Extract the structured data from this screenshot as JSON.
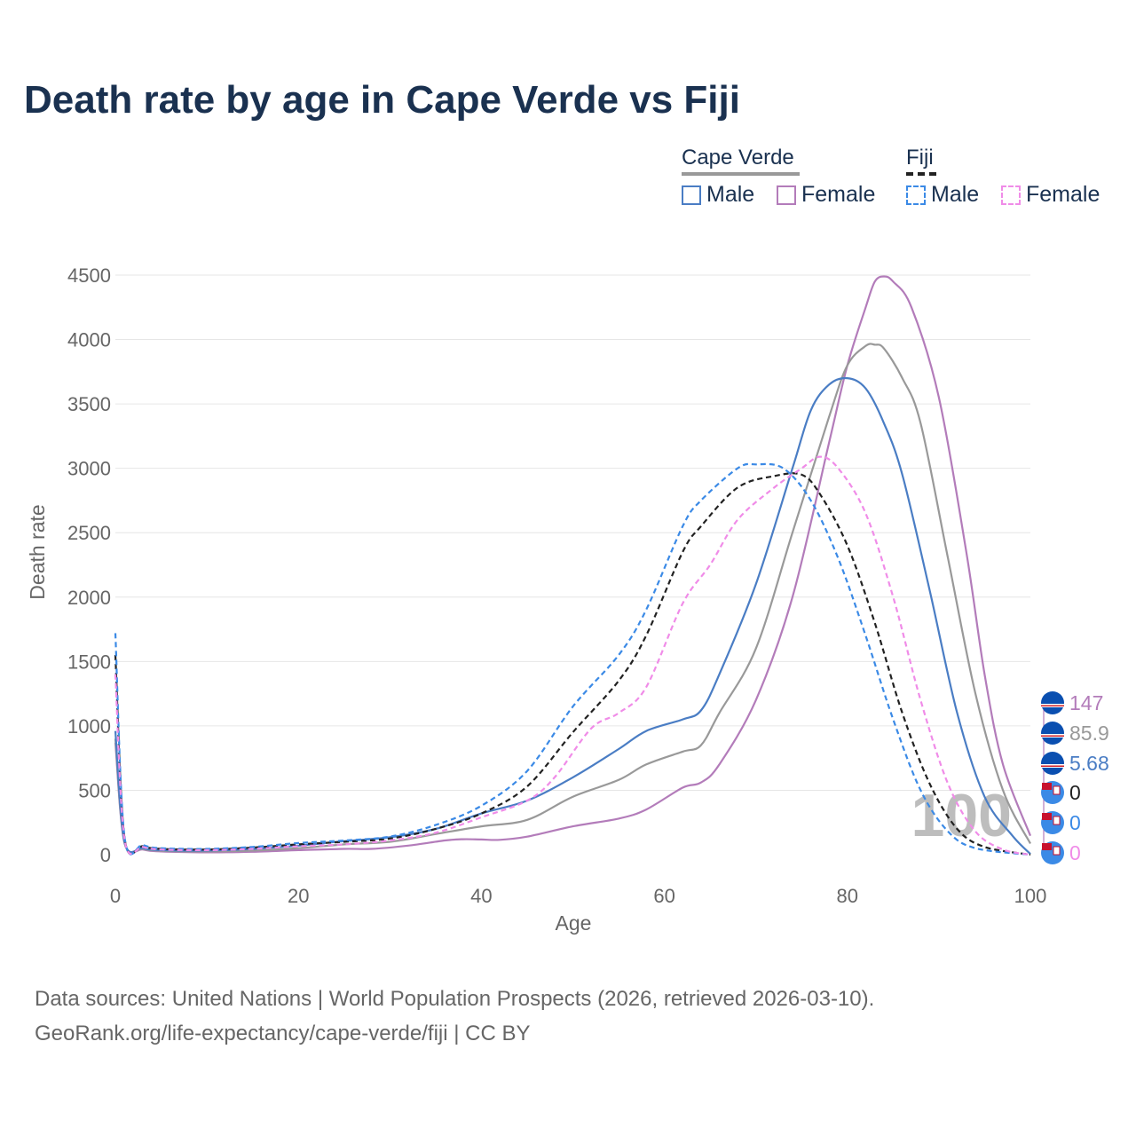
{
  "title": "Death rate by age in Cape Verde vs Fiji",
  "legend": {
    "group1": "Cape Verde",
    "group2": "Fiji",
    "male": "Male",
    "female": "Female"
  },
  "source_line1": "Data sources: United Nations | World Population Prospects (2026, retrieved 2026-03-10).",
  "source_line2": "GeoRank.org/life-expectancy/cape-verde/fiji | CC BY",
  "colors": {
    "cv_male": "#4a7dc4",
    "cv_female": "#b37cba",
    "cv_total": "#999999",
    "fj_male": "#3b8ae6",
    "fj_female": "#f08ce8",
    "fj_total": "#222222",
    "grid": "#e6e6e6",
    "watermark": "#bdbdbd"
  },
  "chart_data": {
    "type": "line",
    "title": "Death rate by age in Cape Verde vs Fiji",
    "xlabel": "Age",
    "ylabel": "Death rate",
    "xlim": [
      0,
      100
    ],
    "ylim": [
      0,
      4500
    ],
    "x_ticks": [
      0,
      20,
      40,
      60,
      80,
      100
    ],
    "y_ticks": [
      0,
      500,
      1000,
      1500,
      2000,
      2500,
      3000,
      3500,
      4000,
      4500
    ],
    "grid": true,
    "legend_position": "top-right",
    "current_age_watermark": "100",
    "series": [
      {
        "name": "Cape Verde Female",
        "key": "cv_female",
        "dash": false,
        "end_label": "147",
        "points": [
          [
            0,
            870
          ],
          [
            1,
            90
          ],
          [
            3,
            40
          ],
          [
            5,
            25
          ],
          [
            10,
            18
          ],
          [
            15,
            22
          ],
          [
            20,
            35
          ],
          [
            25,
            45
          ],
          [
            28,
            45
          ],
          [
            32,
            70
          ],
          [
            36,
            110
          ],
          [
            38,
            120
          ],
          [
            40,
            118
          ],
          [
            42,
            115
          ],
          [
            45,
            140
          ],
          [
            50,
            220
          ],
          [
            55,
            280
          ],
          [
            58,
            350
          ],
          [
            62,
            520
          ],
          [
            64,
            560
          ],
          [
            66,
            700
          ],
          [
            70,
            1200
          ],
          [
            74,
            2000
          ],
          [
            78,
            3200
          ],
          [
            80,
            3800
          ],
          [
            82,
            4250
          ],
          [
            83,
            4450
          ],
          [
            84,
            4490
          ],
          [
            85,
            4450
          ],
          [
            87,
            4250
          ],
          [
            90,
            3550
          ],
          [
            93,
            2350
          ],
          [
            95,
            1400
          ],
          [
            97,
            700
          ],
          [
            100,
            147
          ]
        ]
      },
      {
        "name": "Cape Verde Total",
        "key": "cv_total",
        "dash": false,
        "end_label": "85.9",
        "points": [
          [
            0,
            900
          ],
          [
            1,
            95
          ],
          [
            3,
            45
          ],
          [
            5,
            30
          ],
          [
            10,
            25
          ],
          [
            15,
            32
          ],
          [
            20,
            50
          ],
          [
            25,
            80
          ],
          [
            30,
            100
          ],
          [
            35,
            160
          ],
          [
            40,
            220
          ],
          [
            45,
            270
          ],
          [
            50,
            450
          ],
          [
            55,
            580
          ],
          [
            58,
            700
          ],
          [
            62,
            800
          ],
          [
            64,
            850
          ],
          [
            66,
            1100
          ],
          [
            70,
            1600
          ],
          [
            74,
            2500
          ],
          [
            78,
            3400
          ],
          [
            80,
            3800
          ],
          [
            82,
            3950
          ],
          [
            83,
            3960
          ],
          [
            84,
            3930
          ],
          [
            86,
            3700
          ],
          [
            88,
            3350
          ],
          [
            91,
            2300
          ],
          [
            94,
            1250
          ],
          [
            97,
            500
          ],
          [
            100,
            85.9
          ]
        ]
      },
      {
        "name": "Cape Verde Male",
        "key": "cv_male",
        "dash": false,
        "end_label": "5.68",
        "points": [
          [
            0,
            960
          ],
          [
            1,
            100
          ],
          [
            3,
            50
          ],
          [
            5,
            35
          ],
          [
            10,
            32
          ],
          [
            15,
            45
          ],
          [
            20,
            70
          ],
          [
            25,
            105
          ],
          [
            30,
            135
          ],
          [
            35,
            200
          ],
          [
            40,
            320
          ],
          [
            45,
            420
          ],
          [
            50,
            600
          ],
          [
            55,
            820
          ],
          [
            58,
            960
          ],
          [
            62,
            1050
          ],
          [
            64,
            1120
          ],
          [
            66,
            1400
          ],
          [
            70,
            2100
          ],
          [
            74,
            3000
          ],
          [
            76,
            3450
          ],
          [
            78,
            3650
          ],
          [
            80,
            3700
          ],
          [
            82,
            3620
          ],
          [
            84,
            3350
          ],
          [
            86,
            2950
          ],
          [
            89,
            2050
          ],
          [
            92,
            1100
          ],
          [
            95,
            450
          ],
          [
            98,
            150
          ],
          [
            100,
            5.68
          ]
        ]
      },
      {
        "name": "Fiji Total",
        "key": "fj_total",
        "dash": true,
        "end_label": "0",
        "points": [
          [
            0,
            1550
          ],
          [
            1,
            130
          ],
          [
            3,
            65
          ],
          [
            5,
            45
          ],
          [
            10,
            40
          ],
          [
            15,
            55
          ],
          [
            20,
            80
          ],
          [
            25,
            100
          ],
          [
            30,
            125
          ],
          [
            35,
            200
          ],
          [
            40,
            320
          ],
          [
            45,
            530
          ],
          [
            50,
            950
          ],
          [
            55,
            1350
          ],
          [
            58,
            1700
          ],
          [
            62,
            2350
          ],
          [
            64,
            2550
          ],
          [
            68,
            2850
          ],
          [
            72,
            2940
          ],
          [
            75,
            2950
          ],
          [
            77,
            2800
          ],
          [
            80,
            2400
          ],
          [
            83,
            1800
          ],
          [
            86,
            1100
          ],
          [
            89,
            550
          ],
          [
            92,
            200
          ],
          [
            95,
            60
          ],
          [
            100,
            0
          ]
        ]
      },
      {
        "name": "Fiji Male",
        "key": "fj_male",
        "dash": true,
        "end_label": "0",
        "points": [
          [
            0,
            1720
          ],
          [
            1,
            140
          ],
          [
            3,
            75
          ],
          [
            5,
            50
          ],
          [
            10,
            45
          ],
          [
            15,
            60
          ],
          [
            20,
            90
          ],
          [
            25,
            110
          ],
          [
            30,
            140
          ],
          [
            35,
            230
          ],
          [
            40,
            380
          ],
          [
            45,
            650
          ],
          [
            50,
            1150
          ],
          [
            55,
            1550
          ],
          [
            58,
            1900
          ],
          [
            62,
            2550
          ],
          [
            64,
            2750
          ],
          [
            68,
            3000
          ],
          [
            70,
            3030
          ],
          [
            73,
            3000
          ],
          [
            76,
            2750
          ],
          [
            79,
            2300
          ],
          [
            82,
            1700
          ],
          [
            85,
            1050
          ],
          [
            88,
            500
          ],
          [
            91,
            180
          ],
          [
            94,
            50
          ],
          [
            100,
            0
          ]
        ]
      },
      {
        "name": "Fiji Female",
        "key": "fj_female",
        "dash": true,
        "end_label": "0",
        "points": [
          [
            0,
            1400
          ],
          [
            1,
            120
          ],
          [
            3,
            60
          ],
          [
            5,
            40
          ],
          [
            10,
            35
          ],
          [
            15,
            45
          ],
          [
            20,
            65
          ],
          [
            25,
            80
          ],
          [
            30,
            110
          ],
          [
            35,
            170
          ],
          [
            40,
            290
          ],
          [
            45,
            420
          ],
          [
            48,
            600
          ],
          [
            52,
            980
          ],
          [
            55,
            1100
          ],
          [
            58,
            1300
          ],
          [
            62,
            1950
          ],
          [
            65,
            2250
          ],
          [
            68,
            2600
          ],
          [
            72,
            2850
          ],
          [
            75,
            3000
          ],
          [
            77,
            3090
          ],
          [
            79,
            3000
          ],
          [
            82,
            2650
          ],
          [
            85,
            2000
          ],
          [
            88,
            1200
          ],
          [
            91,
            550
          ],
          [
            94,
            180
          ],
          [
            97,
            40
          ],
          [
            100,
            0
          ]
        ]
      }
    ]
  }
}
